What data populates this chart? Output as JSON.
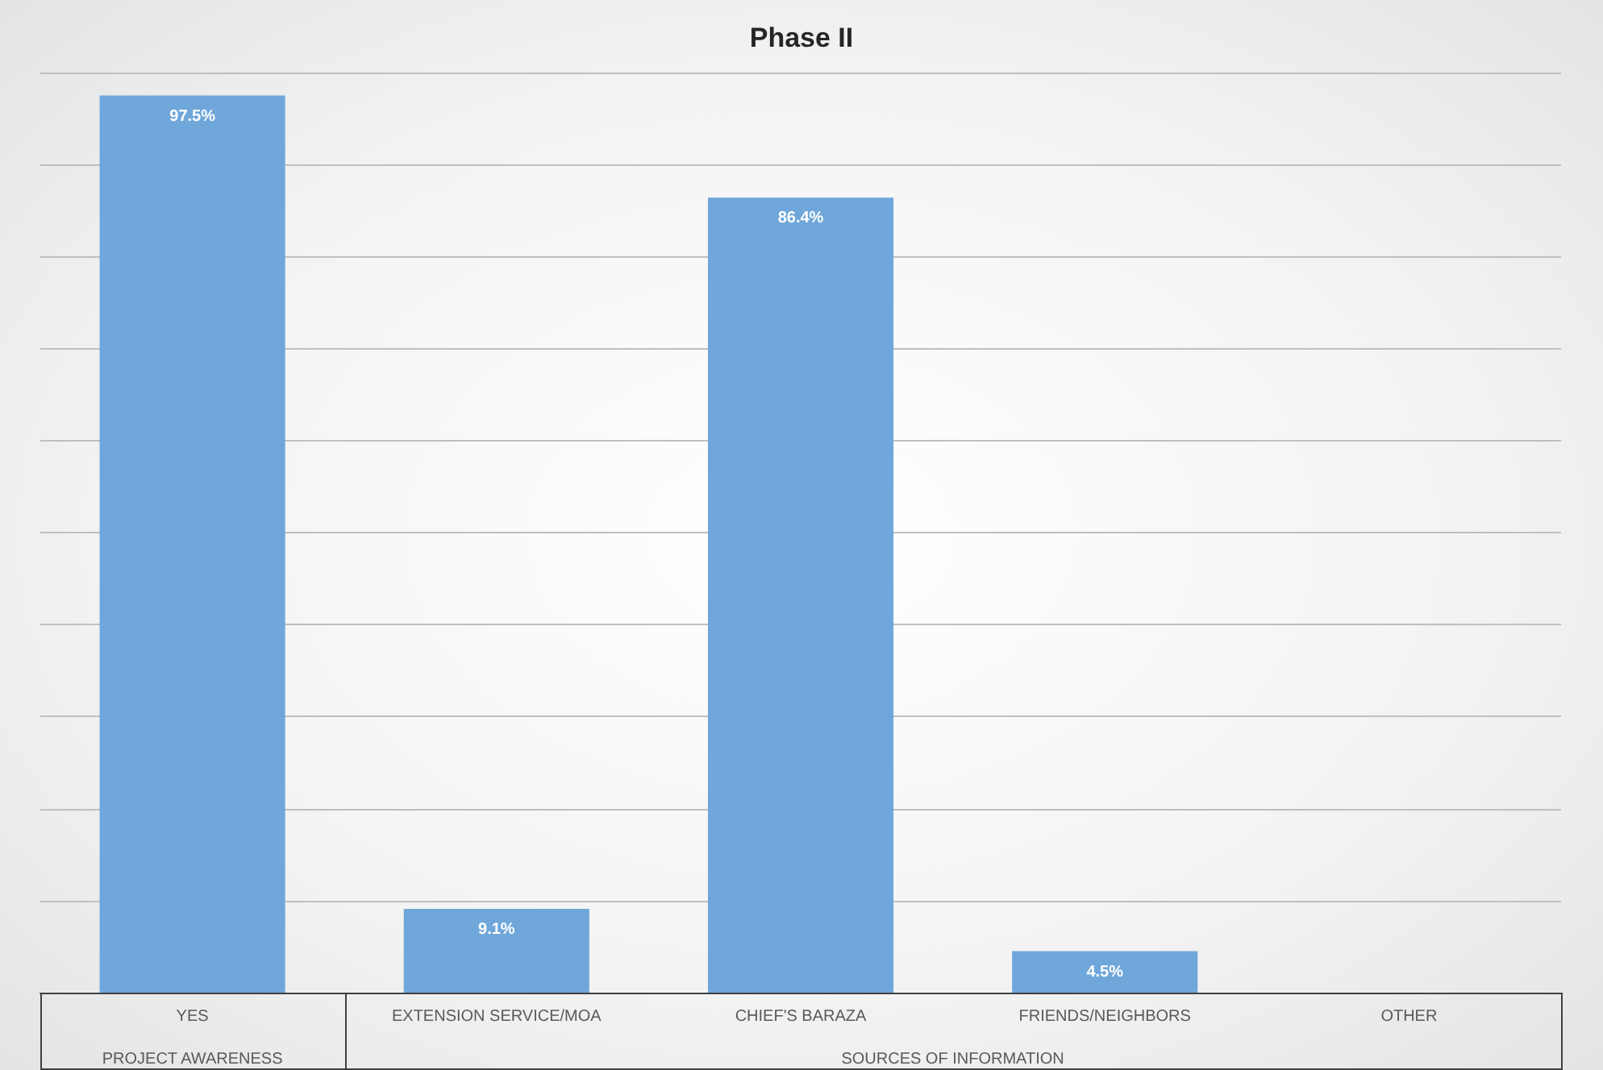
{
  "chart_data": {
    "type": "bar",
    "title": "Phase II",
    "categories": [
      "YES",
      "EXTENSION SERVICE/MOA",
      "CHIEF'S BARAZA",
      "FRIENDS/NEIGHBORS",
      "OTHER"
    ],
    "values": [
      97.5,
      9.1,
      86.4,
      4.5,
      0
    ],
    "value_labels": [
      "97.5%",
      "9.1%",
      "86.4%",
      "4.5%",
      null
    ],
    "color": "#6fa7da",
    "ylim": [
      0,
      100
    ],
    "yticks": [
      {
        "value": 0,
        "label": null
      },
      {
        "value": 10,
        "label": null
      },
      {
        "value": 20,
        "label": null
      },
      {
        "value": 30,
        "label": null
      },
      {
        "value": 40,
        "label": null
      },
      {
        "value": 50,
        "label": null
      },
      {
        "value": 60,
        "label": null
      },
      {
        "value": 70,
        "label": null
      },
      {
        "value": 80,
        "label": null
      },
      {
        "value": 90,
        "label": null
      },
      {
        "value": 100,
        "label": null
      }
    ],
    "grid": "y",
    "tick_labels": "x",
    "annotations": [
      "PROJECT AWARENESS",
      "SOURCES OF INFORMATION"
    ]
  }
}
